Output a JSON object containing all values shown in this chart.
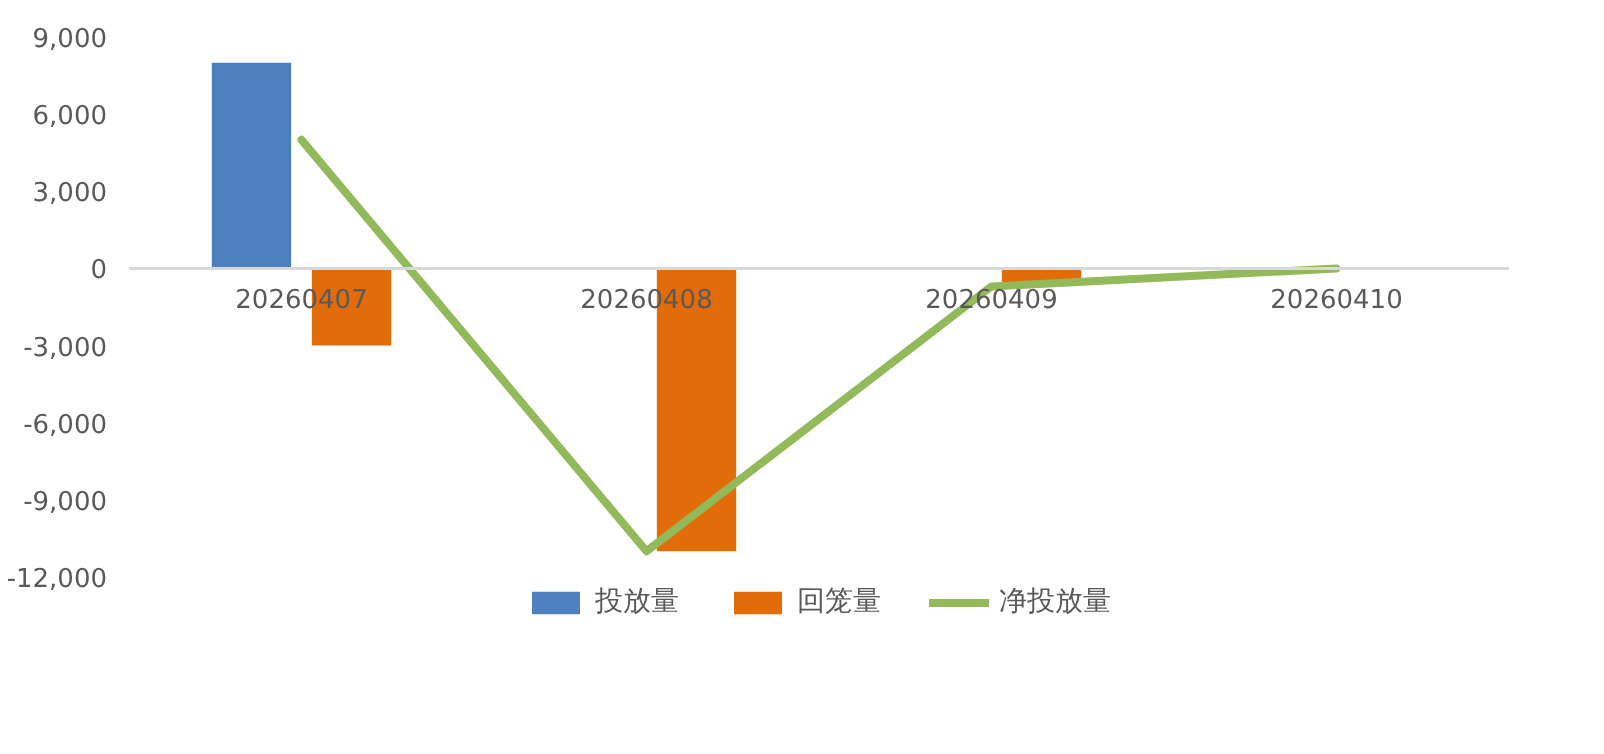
{
  "chart_data": {
    "type": "bar",
    "categories": [
      "20260407",
      "20260408",
      "20260409",
      "20260410"
    ],
    "series": [
      {
        "name": "投放量",
        "color": "#4e7fbe",
        "values": [
          8000,
          0,
          0,
          0
        ]
      },
      {
        "name": "回笼量",
        "color": "#e36c0a",
        "values": [
          -3000,
          -11000,
          -600,
          0
        ]
      },
      {
        "name": "净投放量",
        "type": "line",
        "color": "#92b95a",
        "values": [
          5000,
          -11000,
          -700,
          0
        ]
      }
    ],
    "ylim": [
      -12000,
      9000
    ],
    "yticks": [
      {
        "value": -12000,
        "label": "-12,000"
      },
      {
        "value": -9000,
        "label": "-9,000"
      },
      {
        "value": -6000,
        "label": "-6,000"
      },
      {
        "value": -3000,
        "label": "-3,000"
      },
      0,
      {
        "value": 3000,
        "label": "3,000"
      },
      {
        "value": 6000,
        "label": "6,000"
      },
      {
        "value": 9000,
        "label": "9,000"
      }
    ],
    "grid": false,
    "legend": "bottom"
  }
}
